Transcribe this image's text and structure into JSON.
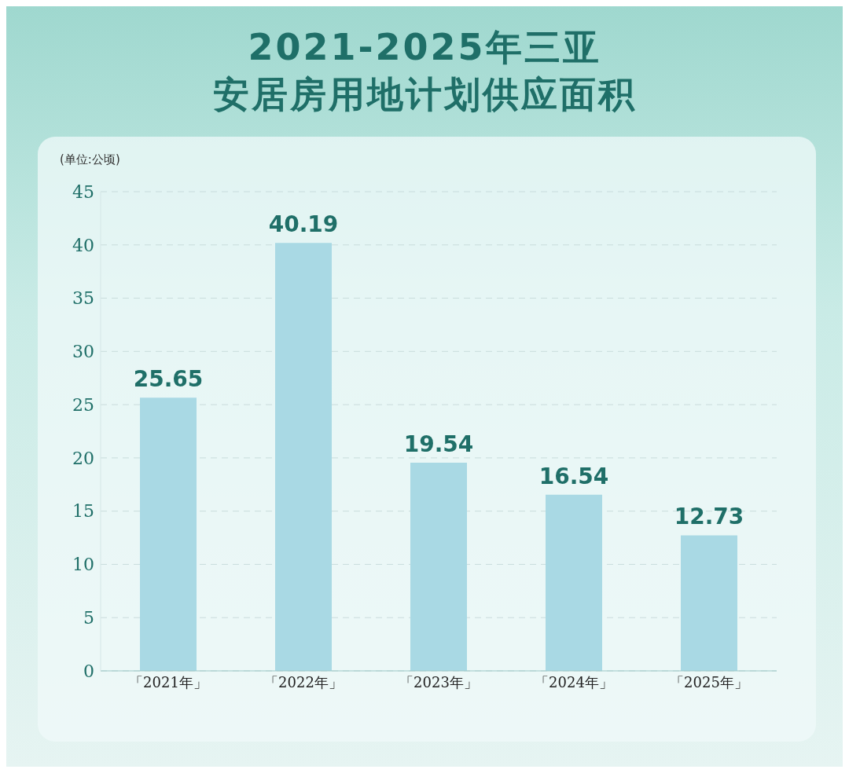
{
  "chart_data": {
    "type": "bar",
    "title": "2021-2025年三亚",
    "subtitle": "安居房用地计划供应面积",
    "ylabel": "(单位:公顷)",
    "categories": [
      "「2021年」",
      "「2022年」",
      "「2023年」",
      "「2024年」",
      "「2025年」"
    ],
    "values": [
      25.65,
      40.19,
      19.54,
      16.54,
      12.73
    ],
    "color": "#a9d9e4",
    "ylim": [
      0,
      45
    ],
    "yticks": [
      0,
      5,
      10,
      15,
      20,
      25,
      30,
      35,
      40,
      45
    ],
    "grid": "y",
    "data_labels": true
  }
}
